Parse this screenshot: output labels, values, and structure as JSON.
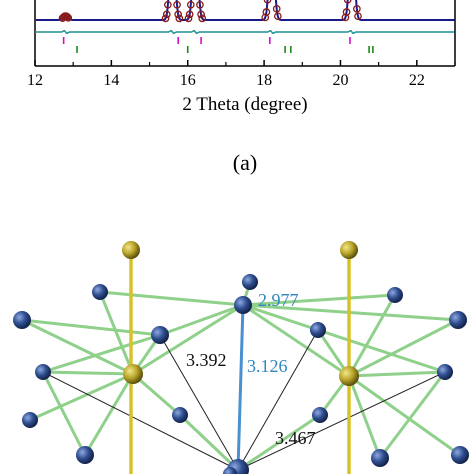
{
  "panel_a": {
    "xlabel": "2 Theta (degree)",
    "xticks": [
      "12",
      "14",
      "16",
      "18",
      "20",
      "22"
    ],
    "caption": "(a)",
    "colors": {
      "observed": "#8b1a1a",
      "calculated": "#1a1a8a",
      "difference": "#1e8f8f",
      "reflections_1": "#d10fc8",
      "reflections_2": "#1a8a1a"
    }
  },
  "chart_data": {
    "type": "line",
    "title": "",
    "xlabel": "2 Theta (degree)",
    "ylabel": "",
    "xlim": [
      12,
      23
    ],
    "peaks_2theta": [
      12.8,
      15.6,
      16.2,
      18.2,
      20.3
    ],
    "reflection_ticks_1": [
      12.75,
      15.75,
      16.35,
      18.15,
      20.25
    ],
    "reflection_ticks_2": [
      13.1,
      16.0,
      18.55,
      18.7,
      20.75,
      20.85
    ]
  },
  "panel_b": {
    "distance_labels": [
      "2.977",
      "3.392",
      "3.126",
      "3.467"
    ],
    "colors": {
      "blue_atom": "#2e4d8f",
      "gold_atom": "#b8a42a",
      "green_bond": "#8fd08a",
      "gold_bond": "#d8c22a",
      "blue_bond": "#4a8fd0",
      "label_blue": "#2f86c0",
      "label_black": "#111111"
    }
  }
}
